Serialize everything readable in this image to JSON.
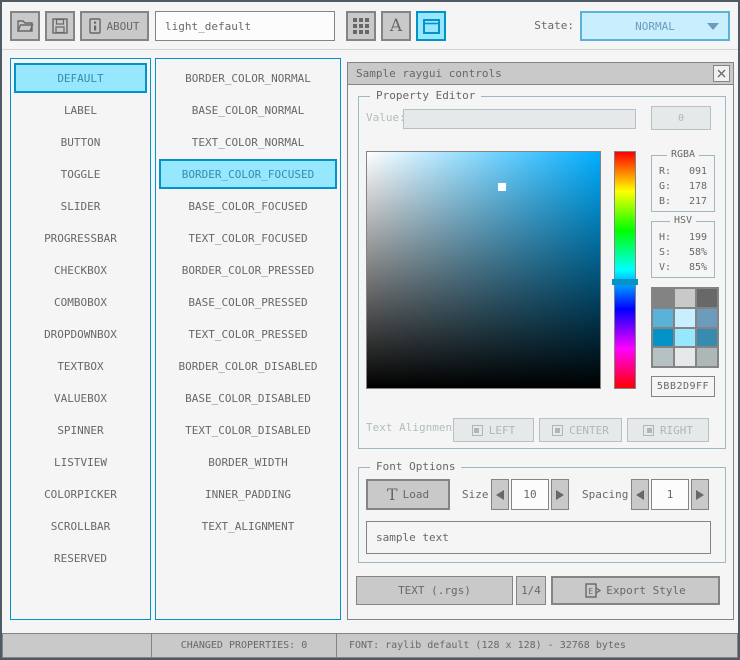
{
  "toolbar": {
    "about_label": "ABOUT",
    "style_name_value": "light_default",
    "state_label": "State:",
    "state_value": "NORMAL"
  },
  "controls": {
    "selected_index": 0,
    "items": [
      "DEFAULT",
      "LABEL",
      "BUTTON",
      "TOGGLE",
      "SLIDER",
      "PROGRESSBAR",
      "CHECKBOX",
      "COMBOBOX",
      "DROPDOWNBOX",
      "TEXTBOX",
      "VALUEBOX",
      "SPINNER",
      "LISTVIEW",
      "COLORPICKER",
      "SCROLLBAR",
      "RESERVED"
    ]
  },
  "properties": {
    "selected_index": 3,
    "items": [
      "BORDER_COLOR_NORMAL",
      "BASE_COLOR_NORMAL",
      "TEXT_COLOR_NORMAL",
      "BORDER_COLOR_FOCUSED",
      "BASE_COLOR_FOCUSED",
      "TEXT_COLOR_FOCUSED",
      "BORDER_COLOR_PRESSED",
      "BASE_COLOR_PRESSED",
      "TEXT_COLOR_PRESSED",
      "BORDER_COLOR_DISABLED",
      "BASE_COLOR_DISABLED",
      "TEXT_COLOR_DISABLED",
      "BORDER_WIDTH",
      "INNER_PADDING",
      "TEXT_ALIGNMENT"
    ]
  },
  "sample_window": {
    "title": "Sample raygui controls",
    "property_editor": {
      "label": "Property Editor",
      "value_label": "Value:",
      "value_text": "",
      "mini_button_label": "0"
    },
    "color_picker": {
      "rgba": {
        "label": "RGBA",
        "r_label": "R:",
        "r": "091",
        "g_label": "G:",
        "g": "178",
        "b_label": "B:",
        "b": "217"
      },
      "hsv": {
        "label": "HSV",
        "h_label": "H:",
        "h": "199",
        "s_label": "S:",
        "s": "58%",
        "v_label": "V:",
        "v": "85%"
      },
      "hex_value": "5BB2D9FF",
      "palette": [
        [
          "#838383",
          "#c9c9c9",
          "#686868"
        ],
        [
          "#5bb2d9",
          "#c9effe",
          "#6c9bbc"
        ],
        [
          "#0492c7",
          "#97e8ff",
          "#368baf"
        ],
        [
          "#b5c1c2",
          "#e6e9e9",
          "#aeb7b8"
        ]
      ]
    },
    "text_alignment": {
      "label": "Text Alignment:",
      "buttons": [
        "LEFT",
        "CENTER",
        "RIGHT"
      ]
    },
    "font_options": {
      "label": "Font Options",
      "load_label": "Load",
      "load_icon_glyph": "T",
      "size_label": "Size:",
      "size_value": "10",
      "spacing_label": "Spacing:",
      "spacing_value": "1",
      "sample_text": "sample text"
    },
    "footer": {
      "format_label": "TEXT (.rgs)",
      "page_label": "1/4",
      "export_label": "Export Style"
    }
  },
  "statusbar": {
    "left_text": "",
    "changed_text": "CHANGED PROPERTIES: 0",
    "font_text": "FONT: raylib default (128 x 128) - 32768 bytes"
  },
  "colors": {
    "border_pressed": "#0492c7",
    "base_pressed": "#97e8ff",
    "text_pressed": "#368baf",
    "border_focused": "#5bb2d9",
    "base_focused": "#c9effe",
    "text_focused": "#6c9bbc",
    "picker_hue_color": "#00aeff",
    "font_icon_glyph": "A"
  }
}
